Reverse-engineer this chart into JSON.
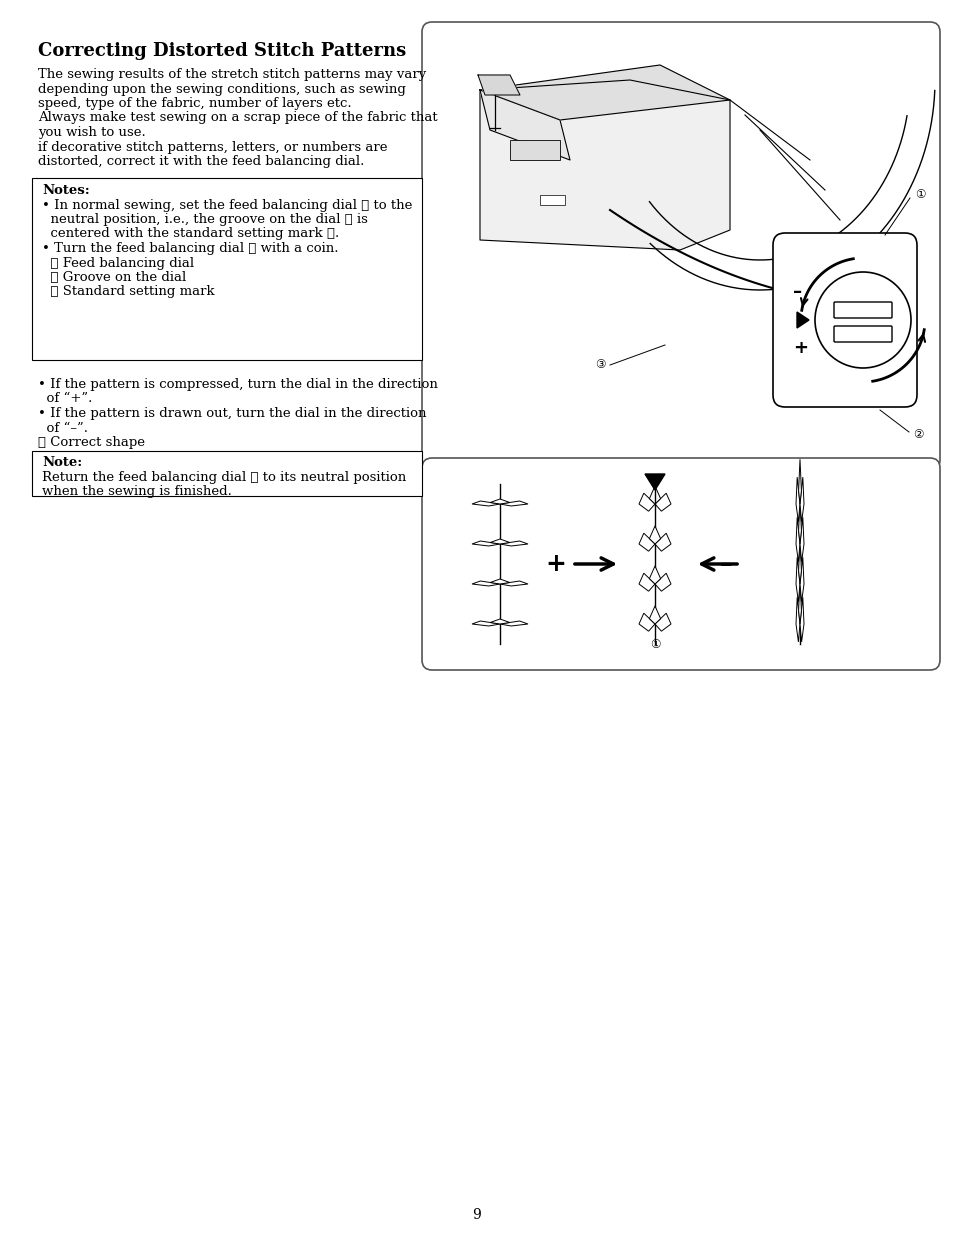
{
  "title": "Correcting Distorted Stitch Patterns",
  "bg_color": "#ffffff",
  "text_color": "#000000",
  "page_number": "9",
  "para1_line1": "The sewing results of the stretch stitch patterns may vary",
  "para1_line2": "depending upon the sewing conditions, such as sewing",
  "para1_line3": "speed, type of the fabric, number of layers etc.",
  "para1_line4": "Always make test sewing on a scrap piece of the fabric that",
  "para1_line5": "you wish to use.",
  "para1_line6": "if decorative stitch patterns, letters, or numbers are",
  "para1_line7": "distorted, correct it with the feed balancing dial.",
  "notes_title": "Notes:",
  "notes_line1": "• In normal sewing, set the feed balancing dial ① to the",
  "notes_line2": "  neutral position, i.e., the groove on the dial ② is",
  "notes_line3": "  centered with the standard setting mark ③.",
  "notes_line4": "• Turn the feed balancing dial ① with a coin.",
  "notes_line5": "  ① Feed balancing dial",
  "notes_line6": "  ② Groove on the dial",
  "notes_line7": "  ③ Standard setting mark",
  "bullet1_line1": "• If the pattern is compressed, turn the dial in the direction",
  "bullet1_line2": "  of “+”.",
  "bullet2_line1": "• If the pattern is drawn out, turn the dial in the direction",
  "bullet2_line2": "  of “–”.",
  "label_correct": "① Correct shape",
  "note2_title": "Note:",
  "note2_line1": "Return the feed balancing dial ① to its neutral position",
  "note2_line2": "when the sewing is finished."
}
